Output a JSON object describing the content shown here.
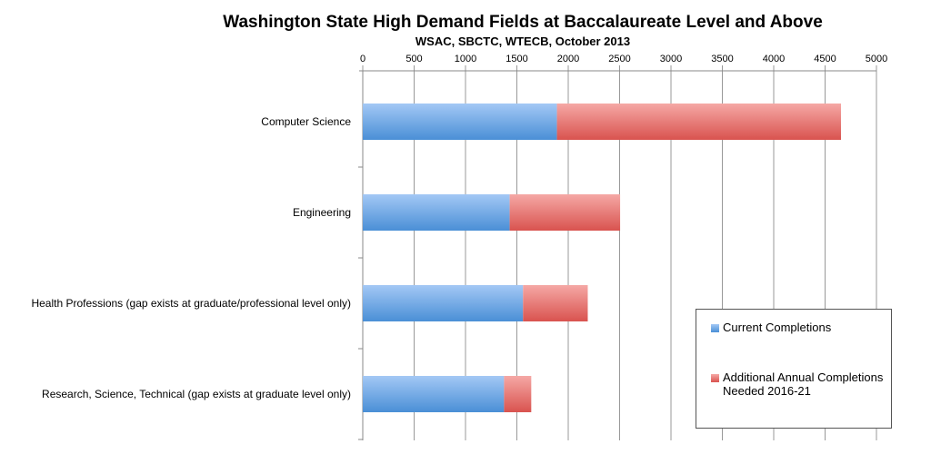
{
  "chart_data": {
    "type": "bar",
    "orientation": "horizontal",
    "stacked": true,
    "title": "Washington State High Demand Fields at Baccalaureate Level and Above",
    "subtitle": "WSAC, SBCTC, WTECB, October 2013",
    "categories": [
      "Computer Science",
      "Engineering",
      "Health Professions (gap exists at graduate/professional level only)",
      "Research, Science, Technical (gap exists at graduate level only)"
    ],
    "series": [
      {
        "name": "Current Completions",
        "color": "#6fa8e8",
        "values": [
          1890,
          1430,
          1560,
          1375
        ]
      },
      {
        "name": "Additional Annual Completions Needed 2016-21",
        "color": "#ea7470",
        "values": [
          2765,
          1075,
          630,
          265
        ]
      }
    ],
    "xlim": [
      0,
      5000
    ],
    "xticks": [
      "0",
      "500",
      "1000",
      "1500",
      "2000",
      "2500",
      "3000",
      "3500",
      "4000",
      "4500",
      "5000"
    ],
    "x_axis_position": "top",
    "grid": true,
    "legend_position": "bottom-right"
  }
}
